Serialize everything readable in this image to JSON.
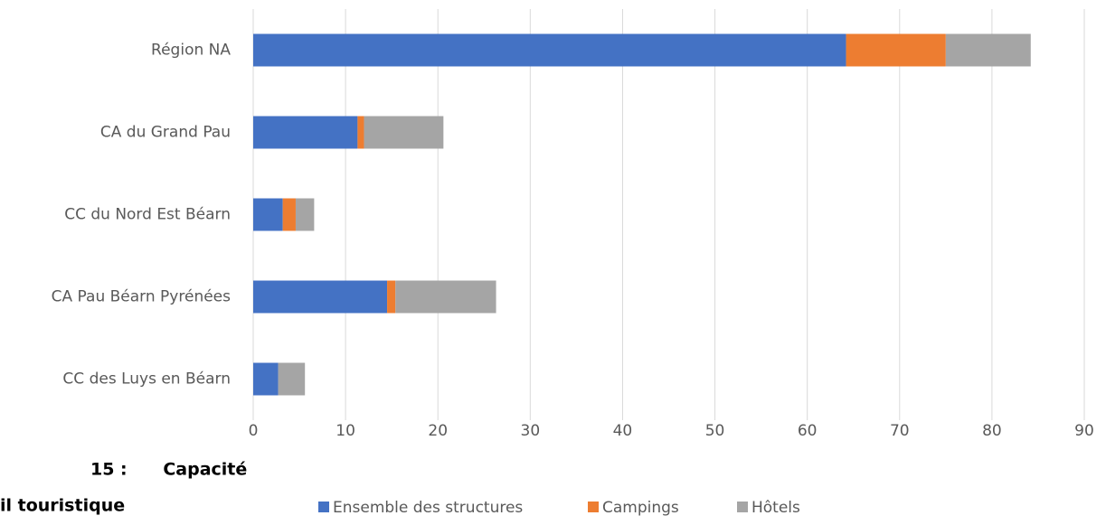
{
  "chart_data": {
    "type": "stacked_barh",
    "categories": [
      "Région NA",
      "CA du Grand Pau ",
      "CC du Nord Est Béarn",
      "CA Pau Béarn Pyrénées",
      "CC des Luys en Béarn"
    ],
    "series": [
      {
        "name": "Ensemble des structures",
        "color": "#4472c4",
        "values": [
          64.2,
          11.3,
          3.2,
          14.5,
          2.7
        ]
      },
      {
        "name": "Campings",
        "color": "#ed7d31",
        "values": [
          10.8,
          0.7,
          1.4,
          0.9,
          0
        ]
      },
      {
        "name": "Hôtels",
        "color": "#a5a5a5",
        "values": [
          9.2,
          8.6,
          2.0,
          10.9,
          2.9
        ]
      }
    ],
    "xlim": [
      0,
      90
    ],
    "xticks": [
      0,
      10,
      20,
      30,
      40,
      50,
      60,
      70,
      80,
      90
    ],
    "grid": true,
    "legend": "bottom"
  },
  "caption": [
    "15 :      Capacité",
    "il touristique"
  ]
}
